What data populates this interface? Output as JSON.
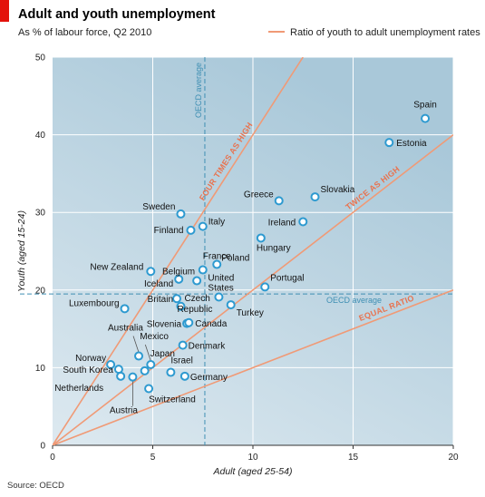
{
  "header": {
    "title": "Adult and youth unemployment",
    "subtitle": "As % of labour force, Q2 2010",
    "legend_label": "Ratio of youth to adult unemployment rates"
  },
  "footer": {
    "source": "Source: OECD"
  },
  "colors": {
    "plot_bg": "#dde9f0",
    "plot_bg_dark": "#a9c8d9",
    "ratio_line": "#f09a76",
    "ratio_text": "#e8734f",
    "oecd_avg": "#3f8fb3",
    "marker_fill": "#ffffff",
    "marker_stroke": "#2e9ad0",
    "accent_red": "#e3120b"
  },
  "chart_data": {
    "type": "scatter",
    "title": "Adult and youth unemployment",
    "xlabel": "Adult (aged 25-54)",
    "ylabel": "Youth (aged 15-24)",
    "xlim": [
      0,
      20
    ],
    "ylim": [
      0,
      50
    ],
    "xticks": [
      "0",
      "5",
      "10",
      "15",
      "20"
    ],
    "yticks": [
      "0",
      "10",
      "20",
      "30",
      "40",
      "50"
    ],
    "grid": true,
    "points": [
      {
        "name": "Spain",
        "x": 18.6,
        "y": 42.1
      },
      {
        "name": "Estonia",
        "x": 16.8,
        "y": 39.0
      },
      {
        "name": "Slovakia",
        "x": 13.1,
        "y": 32.0
      },
      {
        "name": "Greece",
        "x": 11.3,
        "y": 31.5
      },
      {
        "name": "Ireland",
        "x": 12.5,
        "y": 28.8
      },
      {
        "name": "Hungary",
        "x": 10.4,
        "y": 26.7
      },
      {
        "name": "Sweden",
        "x": 6.4,
        "y": 29.8
      },
      {
        "name": "Italy",
        "x": 7.5,
        "y": 28.2
      },
      {
        "name": "Finland",
        "x": 6.9,
        "y": 27.7
      },
      {
        "name": "France",
        "x": 7.5,
        "y": 22.6
      },
      {
        "name": "Poland",
        "x": 8.2,
        "y": 23.3
      },
      {
        "name": "Belgium",
        "x": 7.2,
        "y": 21.2
      },
      {
        "name": "New Zealand",
        "x": 4.9,
        "y": 22.4
      },
      {
        "name": "Iceland",
        "x": 6.3,
        "y": 21.4
      },
      {
        "name": "United States",
        "x": 8.3,
        "y": 19.1
      },
      {
        "name": "Portugal",
        "x": 10.6,
        "y": 20.4
      },
      {
        "name": "Turkey",
        "x": 8.9,
        "y": 18.1
      },
      {
        "name": "Luxembourg",
        "x": 3.6,
        "y": 17.6
      },
      {
        "name": "Britain",
        "x": 6.2,
        "y": 18.9
      },
      {
        "name": "Czech Republic",
        "x": 6.4,
        "y": 17.9
      },
      {
        "name": "Slovenia",
        "x": 6.7,
        "y": 15.7
      },
      {
        "name": "Canada",
        "x": 6.8,
        "y": 15.8
      },
      {
        "name": "Australia",
        "x": 4.3,
        "y": 11.5
      },
      {
        "name": "Mexico",
        "x": 4.9,
        "y": 10.4
      },
      {
        "name": "Japan",
        "x": 4.6,
        "y": 9.6
      },
      {
        "name": "Denmark",
        "x": 6.5,
        "y": 12.9
      },
      {
        "name": "Norway",
        "x": 2.9,
        "y": 10.4
      },
      {
        "name": "South Korea",
        "x": 3.3,
        "y": 9.8
      },
      {
        "name": "Netherlands",
        "x": 3.4,
        "y": 8.9
      },
      {
        "name": "Austria",
        "x": 4.0,
        "y": 8.8
      },
      {
        "name": "Israel",
        "x": 5.9,
        "y": 9.4
      },
      {
        "name": "Germany",
        "x": 6.6,
        "y": 8.9
      },
      {
        "name": "Switzerland",
        "x": 4.8,
        "y": 7.3
      }
    ],
    "ratio_lines": [
      {
        "ratio": 1,
        "label": "EQUAL RATIO"
      },
      {
        "ratio": 2,
        "label": "TWICE AS HIGH"
      },
      {
        "ratio": 4,
        "label": "FOUR TIMES AS HIGH"
      }
    ],
    "oecd_average": {
      "x": 7.6,
      "y": 19.5,
      "x_label": "OECD average",
      "y_label": "OECD average"
    }
  }
}
